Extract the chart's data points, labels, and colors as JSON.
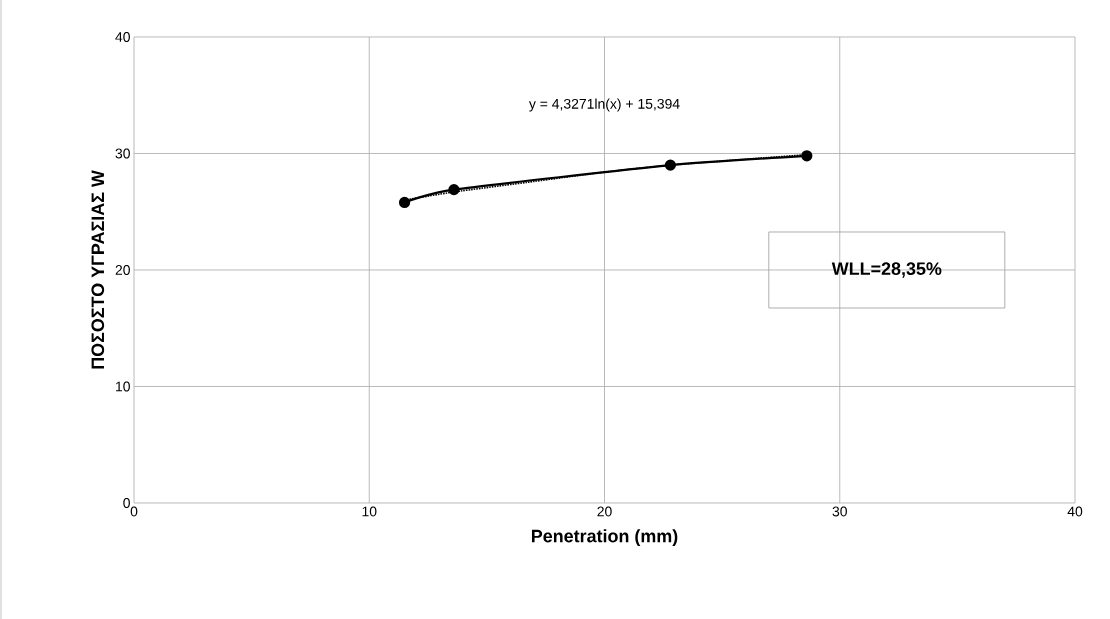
{
  "chart_data": {
    "type": "line",
    "xlabel": "Penetration (mm)",
    "ylabel": "ΠΟΣΟΣΤΟ ΥΓΡΑΣΙΑΣ W",
    "series": [
      {
        "color": "#000000",
        "marker": "circle",
        "line_style": "solid",
        "x": [
          11.5,
          13.6,
          22.8,
          28.6
        ],
        "values": [
          25.8,
          26.9,
          29.0,
          29.8
        ]
      },
      {
        "color": "#000000",
        "marker": "none",
        "line_style": "dotted",
        "x": [
          11.5,
          13.6,
          17,
          20,
          22.8,
          28.6
        ],
        "values": [
          26.0,
          26.7,
          27.6,
          28.4,
          29.0,
          29.9
        ]
      }
    ],
    "annotations": [
      "y = 4,3271ln(x) + 15,394",
      "WLL=28,35%"
    ],
    "xlim": [
      0,
      40
    ],
    "ylim": [
      0,
      40
    ],
    "xticks": [
      0,
      10,
      20,
      30,
      40
    ],
    "yticks": [
      0,
      10,
      20,
      30,
      40
    ],
    "grid": true
  }
}
